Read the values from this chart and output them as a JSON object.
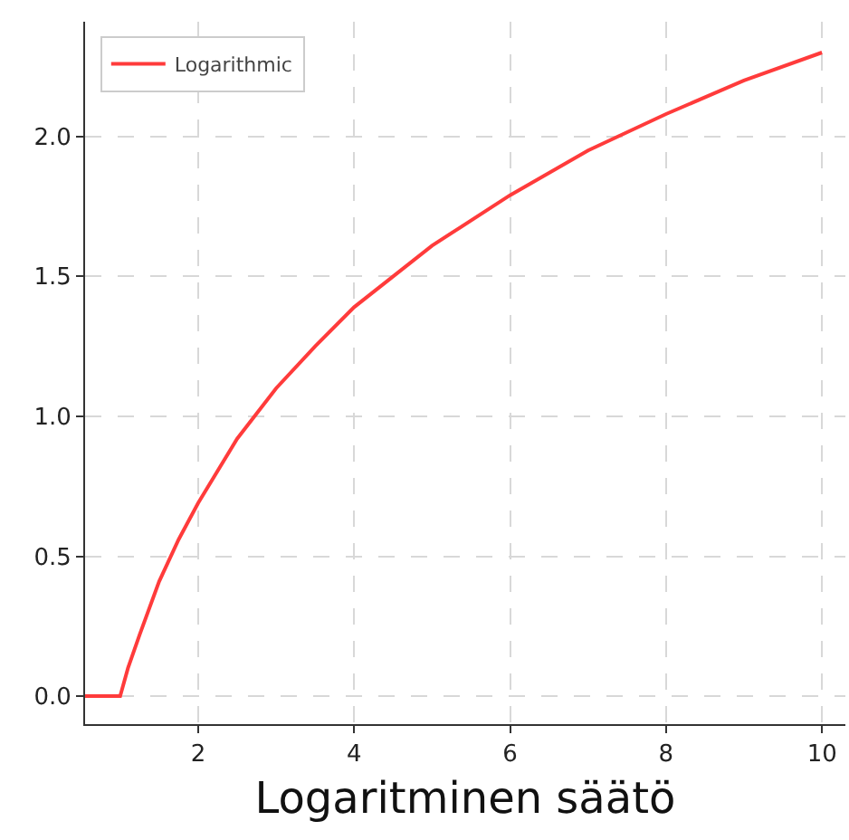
{
  "chart_data": {
    "type": "line",
    "xlabel": "Logaritminen säätö",
    "series": [
      {
        "name": "Logarithmic",
        "color": "#ff3b3b",
        "x": [
          0.55,
          1.0,
          1.1,
          1.25,
          1.5,
          1.75,
          2,
          2.5,
          3,
          3.5,
          4,
          5,
          6,
          7,
          8,
          9,
          10
        ],
        "values": [
          0,
          0,
          0.1,
          0.22,
          0.41,
          0.56,
          0.69,
          0.92,
          1.1,
          1.25,
          1.39,
          1.61,
          1.79,
          1.95,
          2.08,
          2.2,
          2.3
        ]
      }
    ],
    "xlim": [
      0.55,
      10.3
    ],
    "ylim": [
      -0.1,
      2.41
    ],
    "xticks": [
      2,
      4,
      6,
      8,
      10
    ],
    "yticks": [
      {
        "value": 0,
        "label": "0.0"
      },
      {
        "value": 0.5,
        "label": "0.5"
      },
      {
        "value": 1,
        "label": "1.0"
      },
      {
        "value": 1.5,
        "label": "1.5"
      },
      {
        "value": 2,
        "label": "2.0"
      }
    ],
    "grid": true,
    "legend": "top left",
    "marker": "none",
    "line_style": "solid"
  }
}
